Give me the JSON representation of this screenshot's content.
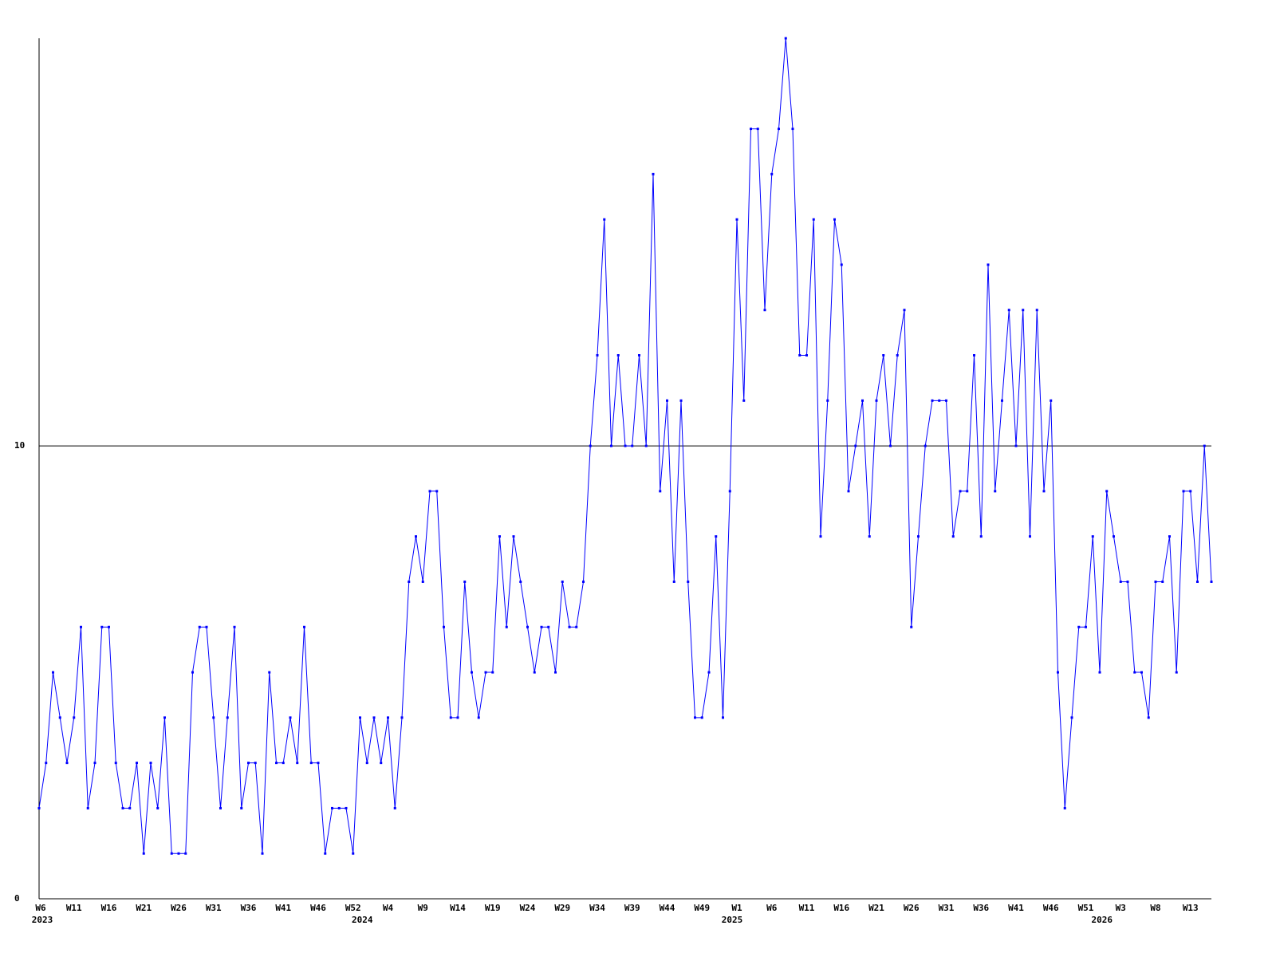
{
  "chart_data": {
    "type": "line",
    "categories": [
      "W6",
      null,
      null,
      null,
      null,
      "W11",
      null,
      null,
      null,
      null,
      "W16",
      null,
      null,
      null,
      null,
      "W21",
      null,
      null,
      null,
      null,
      "W26",
      null,
      null,
      null,
      null,
      "W31",
      null,
      null,
      null,
      null,
      "W36",
      null,
      null,
      null,
      null,
      "W41",
      null,
      null,
      null,
      null,
      "W46",
      null,
      null,
      null,
      null,
      "W52",
      null,
      null,
      null,
      null,
      "W4",
      null,
      null,
      null,
      null,
      "W9",
      null,
      null,
      null,
      null,
      "W14",
      null,
      null,
      null,
      null,
      "W19",
      null,
      null,
      null,
      null,
      "W24",
      null,
      null,
      null,
      null,
      "W29",
      null,
      null,
      null,
      null,
      "W34",
      null,
      null,
      null,
      null,
      "W39",
      null,
      null,
      null,
      null,
      "W44",
      null,
      null,
      null,
      null,
      "W49",
      null,
      null,
      null,
      null,
      "W1",
      null,
      null,
      null,
      null,
      "W6",
      null,
      null,
      null,
      null,
      "W11",
      null,
      null,
      null,
      null,
      "W16",
      null,
      null,
      null,
      null,
      "W21",
      null,
      null,
      null,
      null,
      "W26",
      null,
      null,
      null,
      null,
      "W31",
      null,
      null,
      null,
      null,
      "W36",
      null,
      null,
      null,
      null,
      "W41",
      null,
      null,
      null,
      null,
      "W46",
      null,
      null,
      null,
      null,
      "W51",
      null,
      null,
      null,
      null,
      "W3",
      null,
      null,
      null,
      null,
      "W8",
      null,
      null,
      null,
      null,
      "W13",
      null,
      null,
      null
    ],
    "x_groups": [
      {
        "label": "2023",
        "start": 0
      },
      {
        "label": "2024",
        "start": 47
      },
      {
        "label": "2025",
        "start": 100
      },
      {
        "label": "2026",
        "start": 153
      }
    ],
    "series": [
      {
        "color": "#0000ff",
        "values": [
          2,
          3,
          5,
          4,
          3,
          4,
          6,
          2,
          3,
          6,
          6,
          3,
          2,
          2,
          3,
          1,
          3,
          2,
          4,
          1,
          1,
          1,
          5,
          6,
          6,
          4,
          2,
          4,
          6,
          2,
          3,
          3,
          1,
          5,
          3,
          3,
          4,
          3,
          6,
          3,
          3,
          1,
          2,
          2,
          2,
          1,
          4,
          3,
          4,
          3,
          4,
          2,
          4,
          7,
          8,
          7,
          9,
          9,
          6,
          4,
          4,
          7,
          5,
          4,
          5,
          5,
          8,
          6,
          8,
          7,
          6,
          5,
          6,
          6,
          5,
          7,
          6,
          6,
          7,
          10,
          12,
          15,
          10,
          12,
          10,
          10,
          12,
          10,
          16,
          9,
          11,
          7,
          11,
          7,
          4,
          4,
          5,
          8,
          4,
          9,
          15,
          11,
          17,
          17,
          13,
          16,
          17,
          19,
          17,
          12,
          12,
          15,
          8,
          11,
          15,
          14,
          9,
          10,
          11,
          8,
          11,
          12,
          10,
          12,
          13,
          6,
          8,
          10,
          11,
          11,
          11,
          8,
          9,
          9,
          12,
          8,
          14,
          9,
          11,
          13,
          10,
          13,
          8,
          13,
          9,
          11,
          5,
          2,
          4,
          6,
          6,
          8,
          5,
          9,
          8,
          7,
          7,
          5,
          5,
          4,
          7,
          7,
          8,
          5,
          9,
          9,
          7,
          10,
          7
        ]
      }
    ],
    "ylim": [
      0,
      19
    ],
    "yticks": [
      0,
      10
    ],
    "grid": true
  }
}
